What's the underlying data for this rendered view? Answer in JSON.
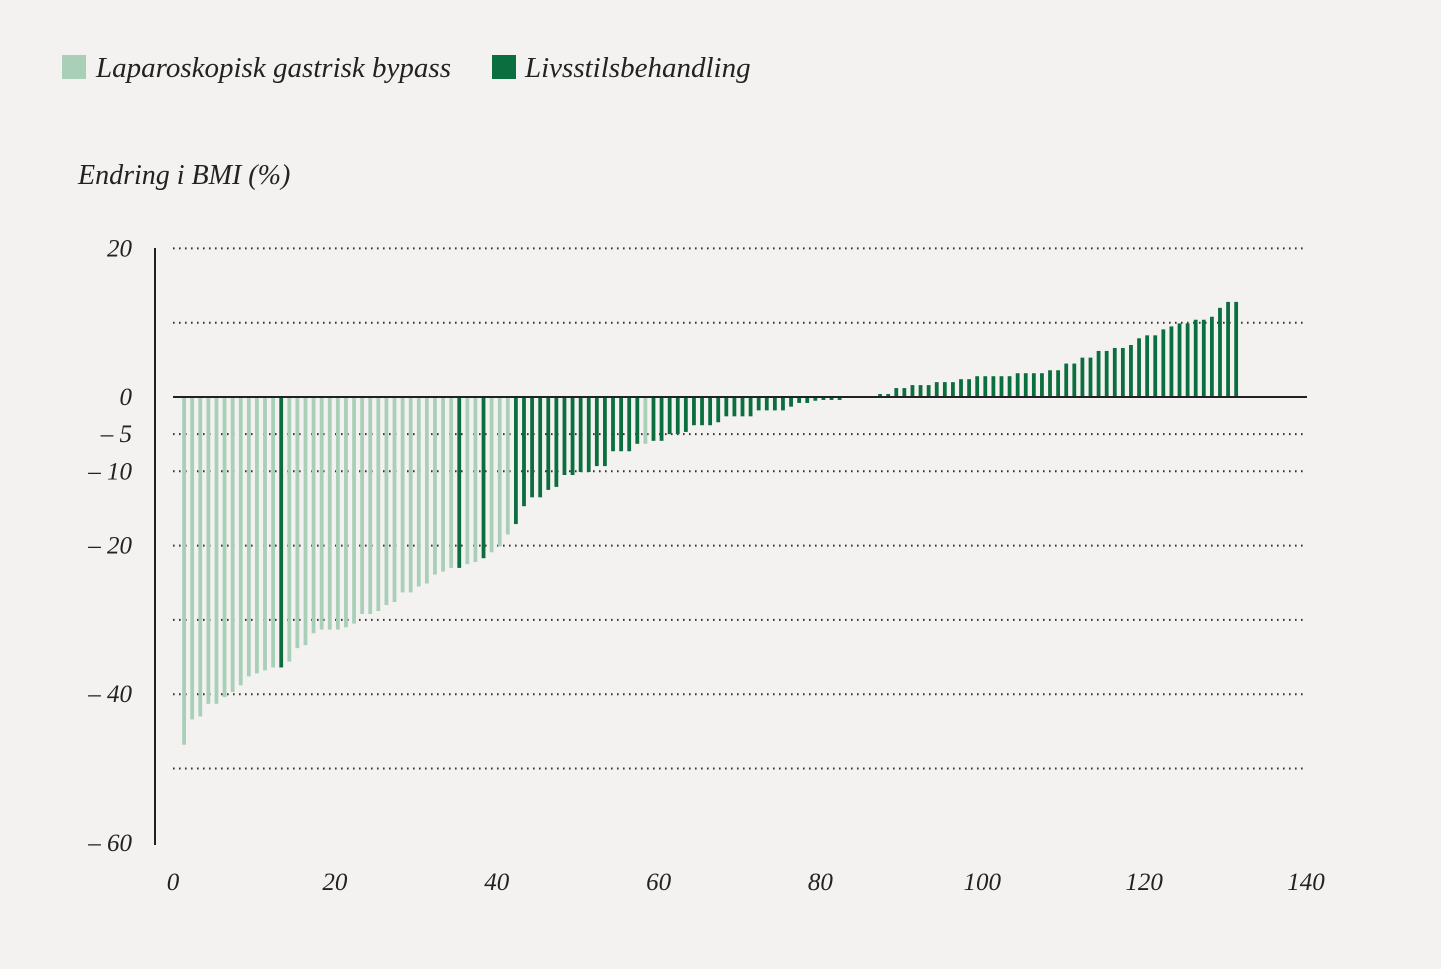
{
  "chart_data": {
    "type": "bar",
    "ylabel": "Endring i BMI (%)",
    "xlabel": "",
    "xlim": [
      0,
      140
    ],
    "ylim": [
      -60,
      20
    ],
    "x_ticks": [
      "0",
      "20",
      "40",
      "60",
      "80",
      "100",
      "120",
      "140"
    ],
    "x_tick_values": [
      0,
      20,
      40,
      60,
      80,
      100,
      120,
      140
    ],
    "y_ticks": [
      {
        "value": 20,
        "label": "20"
      },
      {
        "value": 0,
        "label": "0"
      },
      {
        "value": -5,
        "label": "– 5"
      },
      {
        "value": -10,
        "label": "– 10"
      },
      {
        "value": -20,
        "label": "– 20"
      },
      {
        "value": -40,
        "label": "– 40"
      },
      {
        "value": -60,
        "label": "– 60"
      }
    ],
    "gridlines": [
      20,
      10,
      -5,
      -10,
      -20,
      -30,
      -40,
      -50
    ],
    "grid": true,
    "legend_position": "top-left",
    "legend": [
      {
        "name": "Laparoskopisk gastrisk bypass",
        "color": "#a9cfb9"
      },
      {
        "name": "Livsstilsbehandling",
        "color": "#0b6e3e"
      }
    ],
    "series_groups": {
      "bypass_indices": [
        1,
        2,
        3,
        4,
        5,
        6,
        7,
        8,
        9,
        10,
        11,
        12,
        14,
        15,
        16,
        17,
        18,
        19,
        20,
        21,
        22,
        23,
        24,
        25,
        26,
        27,
        28,
        29,
        30,
        31,
        32,
        33,
        34,
        36,
        37,
        39,
        40,
        41,
        58
      ]
    },
    "values": [
      -46.8,
      -43.4,
      -43.0,
      -41.3,
      -41.3,
      -40.4,
      -39.7,
      -38.8,
      -37.6,
      -37.2,
      -36.8,
      -36.4,
      -36.4,
      -35.6,
      -33.8,
      -33.4,
      -31.8,
      -31.3,
      -31.3,
      -31.3,
      -31.0,
      -30.5,
      -29.2,
      -29.2,
      -28.8,
      -28.0,
      -27.6,
      -26.3,
      -26.3,
      -25.5,
      -25.1,
      -23.9,
      -23.5,
      -23.0,
      -23.0,
      -22.5,
      -22.2,
      -21.7,
      -20.9,
      -20.1,
      -18.5,
      -17.1,
      -14.7,
      -13.5,
      -13.5,
      -12.5,
      -12.1,
      -10.5,
      -10.5,
      -10.1,
      -10.1,
      -9.3,
      -9.3,
      -7.3,
      -7.3,
      -7.3,
      -6.3,
      -6.3,
      -5.9,
      -5.9,
      -5.0,
      -5.0,
      -4.7,
      -3.8,
      -3.8,
      -3.8,
      -3.4,
      -2.6,
      -2.6,
      -2.6,
      -2.6,
      -1.8,
      -1.8,
      -1.8,
      -1.8,
      -1.3,
      -0.8,
      -0.8,
      -0.5,
      -0.4,
      -0.4,
      -0.4,
      0,
      0,
      0,
      0,
      0.4,
      0.4,
      1.2,
      1.2,
      1.6,
      1.6,
      1.6,
      2.0,
      2.0,
      2.0,
      2.4,
      2.4,
      2.8,
      2.8,
      2.8,
      2.8,
      2.8,
      3.2,
      3.2,
      3.2,
      3.2,
      3.6,
      3.6,
      4.5,
      4.5,
      5.3,
      5.3,
      6.2,
      6.2,
      6.6,
      6.6,
      7.0,
      7.9,
      8.3,
      8.3,
      9.1,
      9.5,
      9.9,
      9.9,
      10.4,
      10.4,
      10.8,
      12.0,
      12.8,
      12.8
    ]
  }
}
